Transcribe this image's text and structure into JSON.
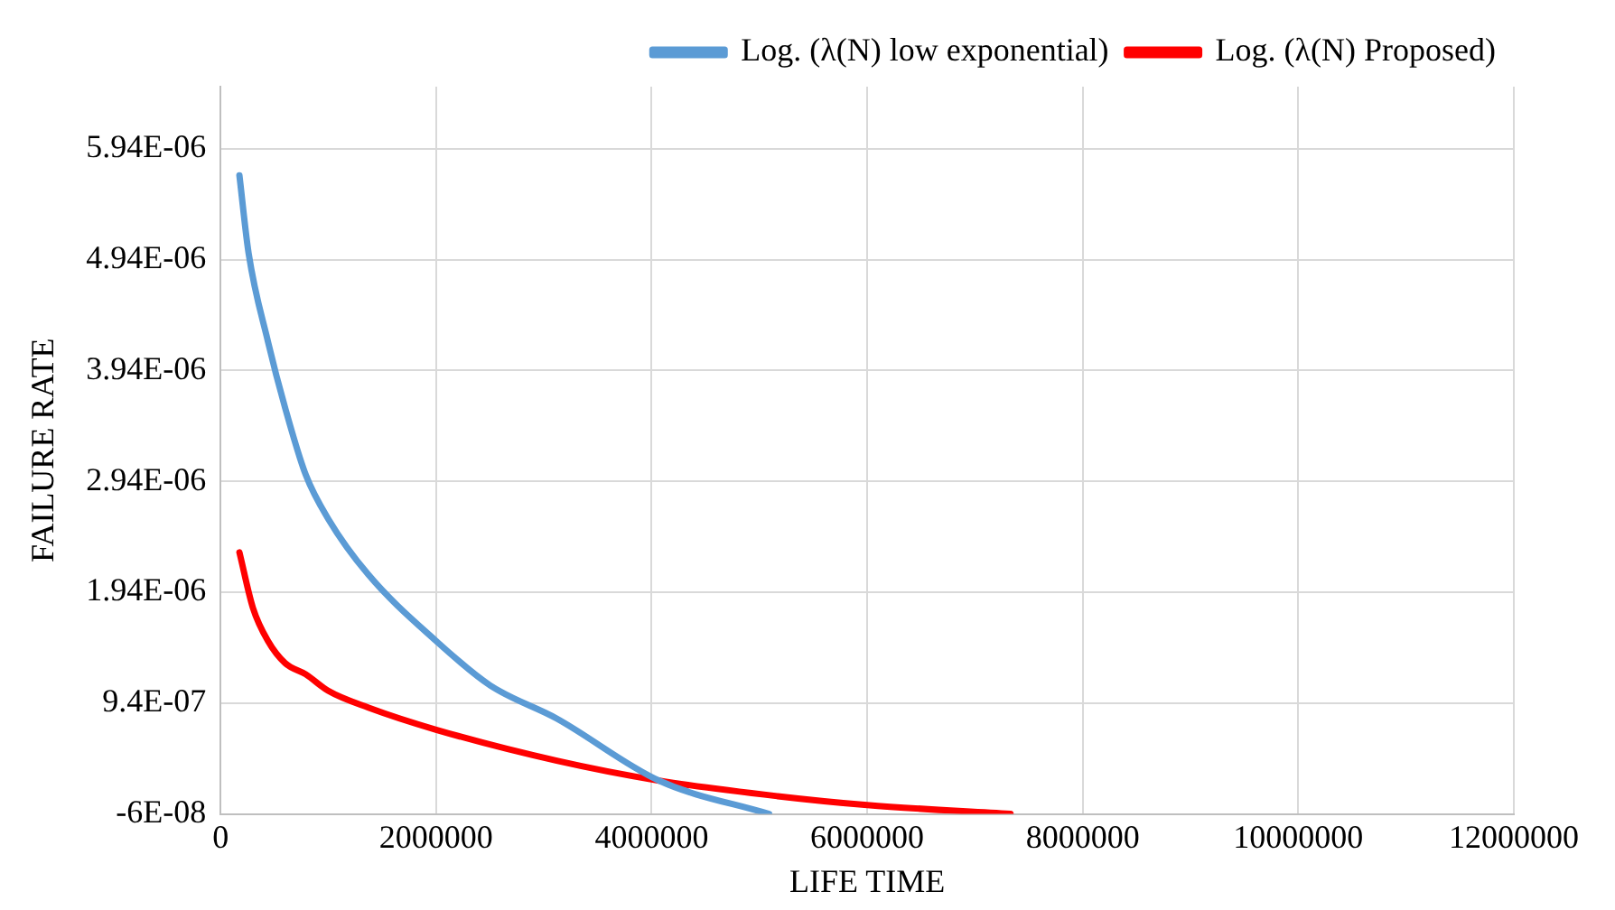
{
  "chart_data": {
    "type": "line",
    "xlabel": "LIFE TIME",
    "ylabel": "FAILURE RATE",
    "xlim": [
      0,
      12000000
    ],
    "xticks": [
      0,
      2000000,
      4000000,
      6000000,
      8000000,
      10000000,
      12000000
    ],
    "ylim": [
      -6e-08,
      6.5e-06
    ],
    "yticks": [
      {
        "value": -6e-08,
        "label": "-6E-08"
      },
      {
        "value": 9.4e-07,
        "label": "9.4E-07"
      },
      {
        "value": 1.94e-06,
        "label": "1.94E-06"
      },
      {
        "value": 2.94e-06,
        "label": "2.94E-06"
      },
      {
        "value": 3.94e-06,
        "label": "3.94E-06"
      },
      {
        "value": 4.94e-06,
        "label": "4.94E-06"
      },
      {
        "value": 5.94e-06,
        "label": "5.94E-06"
      }
    ],
    "grid": true,
    "legend": "top right",
    "marker": "none",
    "line_style": "solid",
    "series": [
      {
        "name": "Log. (λ(N) low exponential)",
        "color": "#5b9bd5",
        "x": [
          175000,
          260000,
          440000,
          600000,
          790000,
          1000000,
          1370000,
          2000000,
          2500000,
          3120000,
          4070000,
          5090000
        ],
        "values": [
          5.7e-06,
          5e-06,
          4.2e-06,
          3.6e-06,
          3e-06,
          2.6e-06,
          2.1e-06,
          1.5e-06,
          1.1e-06,
          8e-07,
          2.4e-07,
          -6e-08
        ]
      },
      {
        "name": "Log. (λ(N) Proposed)",
        "color": "#ff0000",
        "x": [
          175000,
          300000,
          440000,
          600000,
          790000,
          1000000,
          1370000,
          2000000,
          3120000,
          4070000,
          5170000,
          6000000,
          7330000
        ],
        "values": [
          2.3e-06,
          1.8e-06,
          1.5e-06,
          1.3e-06,
          1.2e-06,
          1.05e-06,
          9e-07,
          7e-07,
          4.2e-07,
          2.4e-07,
          1e-07,
          2e-08,
          -6e-08
        ]
      }
    ]
  }
}
